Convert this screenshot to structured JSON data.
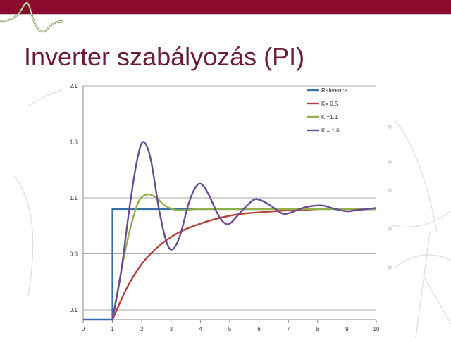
{
  "slide": {
    "title": "Inverter szabályozás (PI)"
  },
  "colors": {
    "topbar": "#8b0a2e",
    "title": "#6b1a3a",
    "reference": "#3b6faa",
    "k05": "#b5423c",
    "k11": "#93b14a",
    "k16": "#6a4b94"
  },
  "chart_data": {
    "type": "line",
    "title": "",
    "xlabel": "",
    "ylabel": "",
    "xlim": [
      0,
      10
    ],
    "ylim": [
      0.1,
      2.1
    ],
    "x_ticks": [
      "0",
      "1",
      "2",
      "3",
      "4",
      "5",
      "6",
      "7",
      "8",
      "9",
      "10"
    ],
    "y_ticks": [
      "0.1",
      "0.6",
      "1.1",
      "1.6",
      "2.1"
    ],
    "grid": "horizontal",
    "legend_position": "top-right",
    "series": [
      {
        "name": "Reference",
        "color": "#3b6faa",
        "x": [
          0,
          1,
          1,
          10
        ],
        "y": [
          0.0,
          0.0,
          1.0,
          1.0
        ]
      },
      {
        "name": "K= 0.5",
        "color": "#b5423c",
        "x": [
          1,
          1.5,
          2,
          2.5,
          3,
          3.5,
          4,
          4.5,
          5,
          5.5,
          6,
          6.5,
          7,
          7.5,
          8,
          9,
          10
        ],
        "y": [
          0.0,
          0.3,
          0.51,
          0.65,
          0.75,
          0.82,
          0.87,
          0.91,
          0.94,
          0.96,
          0.97,
          0.98,
          0.99,
          0.99,
          1.0,
          1.0,
          1.0
        ]
      },
      {
        "name": "K =1.1",
        "color": "#93b14a",
        "x": [
          1,
          1.3,
          1.6,
          1.9,
          2.2,
          2.5,
          2.8,
          3.2,
          3.6,
          4,
          5,
          6,
          7,
          8,
          9,
          10
        ],
        "y": [
          0.0,
          0.45,
          0.82,
          1.07,
          1.13,
          1.1,
          1.03,
          0.99,
          0.995,
          1.0,
          1.0,
          1.0,
          1.0,
          1.0,
          1.0,
          1.0
        ]
      },
      {
        "name": "K = 1.6",
        "color": "#6a4b94",
        "x": [
          1,
          1.3,
          1.6,
          1.85,
          2.05,
          2.3,
          2.6,
          2.85,
          3.05,
          3.3,
          3.6,
          3.85,
          4.05,
          4.3,
          4.6,
          4.85,
          5.05,
          5.4,
          5.8,
          6.05,
          6.4,
          6.8,
          7.1,
          7.5,
          7.9,
          8.2,
          8.6,
          9.0,
          9.3,
          9.7,
          10
        ],
        "y": [
          0.0,
          0.45,
          1.05,
          1.45,
          1.6,
          1.45,
          0.98,
          0.7,
          0.64,
          0.76,
          1.05,
          1.2,
          1.22,
          1.12,
          0.95,
          0.87,
          0.88,
          0.98,
          1.08,
          1.08,
          1.03,
          0.96,
          0.97,
          1.01,
          1.03,
          1.03,
          1.0,
          0.98,
          0.99,
          1.0,
          1.01
        ]
      }
    ]
  }
}
